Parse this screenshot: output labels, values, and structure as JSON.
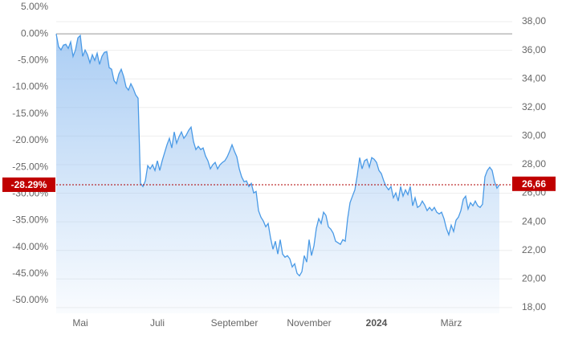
{
  "chart_data": {
    "type": "line",
    "color": "#4a9ae6",
    "fill_color": "#8fbdf0",
    "xlim": [
      0,
      183
    ],
    "xticks": [
      {
        "value": 10,
        "label": "Mai"
      },
      {
        "value": 42,
        "label": "Juli"
      },
      {
        "value": 74,
        "label": "September"
      },
      {
        "value": 105,
        "label": "November"
      },
      {
        "value": 133,
        "label": "2024",
        "bold": true
      },
      {
        "value": 164,
        "label": "März"
      }
    ],
    "ylim": [
      -52.4,
      5.6
    ],
    "yticks": [
      {
        "value": 5,
        "label": "5.00%"
      },
      {
        "value": 0,
        "label": "0.00%"
      },
      {
        "value": -5,
        "label": "-5.00%"
      },
      {
        "value": -10,
        "label": "-10.00%"
      },
      {
        "value": -15,
        "label": "-15.00%"
      },
      {
        "value": -20,
        "label": "-20.00%"
      },
      {
        "value": -25,
        "label": "-25.00%"
      },
      {
        "value": -30,
        "label": "-30.00%"
      },
      {
        "value": -35,
        "label": "-35.00%"
      },
      {
        "value": -40,
        "label": "-40.00%"
      },
      {
        "value": -45,
        "label": "-45.00%"
      },
      {
        "value": -50,
        "label": "-50.00%"
      }
    ],
    "y2lim": [
      17.6,
      39.24
    ],
    "y2ticks": [
      {
        "value": 38,
        "label": "38,00"
      },
      {
        "value": 36,
        "label": "36,00"
      },
      {
        "value": 34,
        "label": "34,00"
      },
      {
        "value": 32,
        "label": "32,00"
      },
      {
        "value": 30,
        "label": "30,00"
      },
      {
        "value": 28,
        "label": "28,00"
      },
      {
        "value": 26,
        "label": "26,00"
      },
      {
        "value": 24,
        "label": "24,00"
      },
      {
        "value": 22,
        "label": "22,00"
      },
      {
        "value": 20,
        "label": "20,00"
      },
      {
        "value": 18,
        "label": "18,00"
      }
    ],
    "grid": true,
    "current_value": {
      "value": -28.29,
      "label": "-28.29%"
    },
    "current_price": {
      "value": 26.66,
      "label": "26,66"
    },
    "values": [
      0,
      -2.41,
      -3.01,
      -2.11,
      -1.96,
      -2.71,
      -1.51,
      -4.22,
      -3.01,
      -0.75,
      -0.3,
      -4.22,
      -3.01,
      -3.92,
      -5.43,
      -3.92,
      -4.97,
      -3.62,
      -5.73,
      -4.22,
      -3.47,
      -3.32,
      -6.33,
      -6.63,
      -8.74,
      -9.34,
      -7.54,
      -6.63,
      -7.99,
      -9.95,
      -10.55,
      -9.34,
      -10.25,
      -11.45,
      -12.06,
      -28.03,
      -28.63,
      -27.58,
      -24.71,
      -25.31,
      -24.56,
      -25.62,
      -23.81,
      -25.62,
      -23.81,
      -22.3,
      -20.8,
      -19.59,
      -21.4,
      -18.38,
      -20.5,
      -19.29,
      -18.38,
      -19.59,
      -18.99,
      -18.08,
      -17.48,
      -20.19,
      -21.7,
      -21.1,
      -21.7,
      -21.4,
      -22.9,
      -23.81,
      -25.31,
      -24.56,
      -24.11,
      -25.31,
      -24.56,
      -24.11,
      -23.81,
      -23.06,
      -22.0,
      -20.8,
      -22.0,
      -23.06,
      -25.31,
      -26.82,
      -27.73,
      -27.58,
      -28.63,
      -28.03,
      -29.84,
      -29.54,
      -33.15,
      -34.36,
      -35.11,
      -36.17,
      -35.56,
      -38.28,
      -40.39,
      -38.88,
      -41.29,
      -38.58,
      -41.29,
      -41.89,
      -41.59,
      -42.2,
      -43.7,
      -43.1,
      -44.91,
      -45.36,
      -44.61,
      -41.59,
      -42.8,
      -38.58,
      -41.59,
      -39.79,
      -36.47,
      -34.66,
      -35.56,
      -33.45,
      -34.06,
      -36.17,
      -36.62,
      -37.38,
      -38.88,
      -39.18,
      -39.48,
      -38.58,
      -38.88,
      -34.66,
      -31.65,
      -30.44,
      -29.24,
      -26.52,
      -23.21,
      -25.31,
      -23.81,
      -23.51,
      -25.01,
      -23.21,
      -23.51,
      -24.11,
      -25.62,
      -26.22,
      -27.58,
      -28.63,
      -29.24,
      -28.63,
      -30.74,
      -29.84,
      -31.35,
      -28.63,
      -30.44,
      -29.24,
      -30.14,
      -28.63,
      -32.25,
      -30.74,
      -32.55,
      -32.25,
      -31.35,
      -32.1,
      -33.15,
      -32.55,
      -33.15,
      -32.55,
      -33.45,
      -33.76,
      -33.45,
      -34.66,
      -36.47,
      -37.68,
      -35.87,
      -37.07,
      -34.96,
      -34.36,
      -33.15,
      -31.04,
      -30.44,
      -32.85,
      -31.65,
      -32.25,
      -31.35,
      -32.25,
      -32.55,
      -31.95,
      -26.82,
      -25.62,
      -25.01,
      -25.62,
      -27.73,
      -28.93,
      -28.29
    ]
  }
}
